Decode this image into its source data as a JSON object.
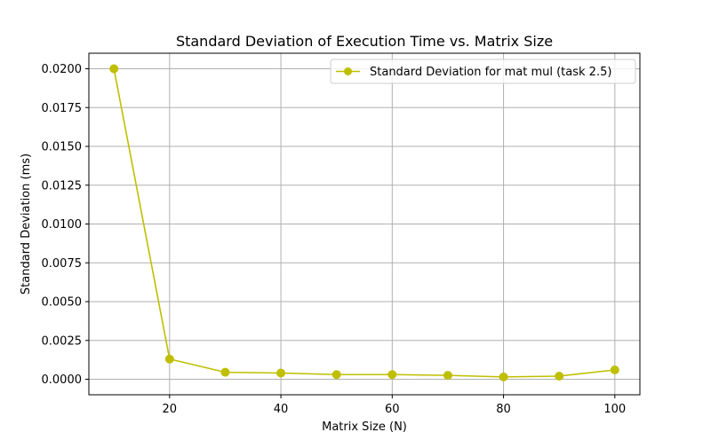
{
  "chart_data": {
    "type": "line",
    "title": "Standard Deviation of Execution Time vs. Matrix Size",
    "xlabel": "Matrix Size (N)",
    "ylabel": "Standard Deviation (ms)",
    "xlim": [
      5.5,
      104.5
    ],
    "ylim": [
      -0.001,
      0.021
    ],
    "x_ticks": [
      20,
      40,
      60,
      80,
      100
    ],
    "x_tick_labels": [
      "20",
      "40",
      "60",
      "80",
      "100"
    ],
    "y_ticks": [
      0.0,
      0.0025,
      0.005,
      0.0075,
      0.01,
      0.0125,
      0.015,
      0.0175,
      0.02
    ],
    "y_tick_labels": [
      "0.0000",
      "0.0025",
      "0.0050",
      "0.0075",
      "0.0100",
      "0.0125",
      "0.0150",
      "0.0175",
      "0.0200"
    ],
    "grid": true,
    "legend_position": "top-right",
    "series": [
      {
        "name": "Standard Deviation for mat mul (task 2.5)",
        "color": "#bfbf00",
        "marker": "circle",
        "x": [
          10,
          20,
          30,
          40,
          50,
          60,
          70,
          80,
          90,
          100
        ],
        "y": [
          0.02,
          0.0013,
          0.00045,
          0.0004,
          0.0003,
          0.0003,
          0.00025,
          0.00015,
          0.0002,
          0.0006
        ]
      }
    ]
  }
}
